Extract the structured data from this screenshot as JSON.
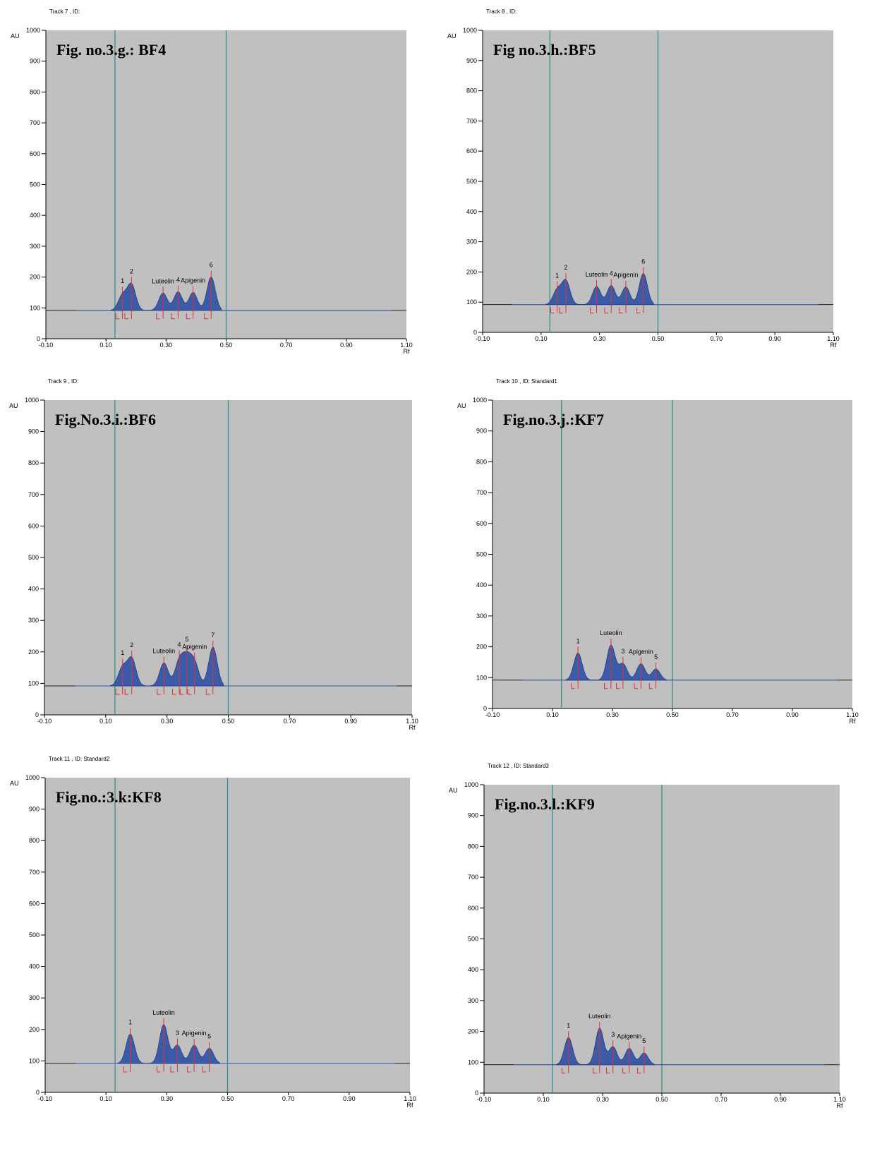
{
  "chart_data": [
    {
      "type": "line",
      "track_label": "Track  7 , ID:",
      "title": "Fig. no.3.g.: BF4",
      "ylabel": "AU",
      "xlabel": "Rf",
      "xlim": [
        -0.1,
        1.1
      ],
      "ylim": [
        0,
        1000
      ],
      "x_ticks": [
        "-0.10",
        "0.10",
        "0.30",
        "0.50",
        "0.70",
        "0.90",
        "1.10"
      ],
      "y_ticks": [
        "0",
        "100",
        "200",
        "300",
        "400",
        "500",
        "600",
        "700",
        "800",
        "900",
        "1000"
      ],
      "baseline": 92,
      "scan_range": [
        0.0,
        1.05
      ],
      "front_lines": [
        0.13,
        0.5
      ],
      "peaks": [
        {
          "rf": 0.155,
          "height": 140,
          "label": "1"
        },
        {
          "rf": 0.185,
          "height": 175,
          "label": "2"
        },
        {
          "rf": 0.29,
          "height": 148,
          "label": "Luteolin"
        },
        {
          "rf": 0.34,
          "height": 152,
          "label": "4"
        },
        {
          "rf": 0.39,
          "height": 150,
          "label": "Apigenin"
        },
        {
          "rf": 0.45,
          "height": 200,
          "label": "6"
        }
      ]
    },
    {
      "type": "line",
      "track_label": "Track  8 , ID:",
      "title": "Fig no.3.h.:BF5",
      "ylabel": "AU",
      "xlabel": "Rf",
      "xlim": [
        -0.1,
        1.1
      ],
      "ylim": [
        0,
        1000
      ],
      "x_ticks": [
        "-0.10",
        "0.10",
        "0.30",
        "0.50",
        "0.70",
        "0.90",
        "1.10"
      ],
      "y_ticks": [
        "0",
        "100",
        "200",
        "300",
        "400",
        "500",
        "600",
        "700",
        "800",
        "900",
        "1000"
      ],
      "baseline": 92,
      "scan_range": [
        0.0,
        1.05
      ],
      "front_lines": [
        0.13,
        0.5
      ],
      "peaks": [
        {
          "rf": 0.155,
          "height": 140,
          "label": "1"
        },
        {
          "rf": 0.185,
          "height": 170,
          "label": "2"
        },
        {
          "rf": 0.29,
          "height": 152,
          "label": "Luteolin"
        },
        {
          "rf": 0.34,
          "height": 155,
          "label": "4"
        },
        {
          "rf": 0.39,
          "height": 150,
          "label": "Apigenin"
        },
        {
          "rf": 0.45,
          "height": 195,
          "label": "6"
        }
      ]
    },
    {
      "type": "line",
      "track_label": "Track  9 , ID:",
      "title": "Fig.No.3.i.:BF6",
      "ylabel": "AU",
      "xlabel": "Rf",
      "xlim": [
        -0.1,
        1.1
      ],
      "ylim": [
        0,
        1000
      ],
      "x_ticks": [
        "-0.10",
        "0.10",
        "0.30",
        "0.50",
        "0.70",
        "0.90",
        "1.10"
      ],
      "y_ticks": [
        "0",
        "100",
        "200",
        "300",
        "400",
        "500",
        "600",
        "700",
        "800",
        "900",
        "1000"
      ],
      "baseline": 92,
      "scan_range": [
        0.0,
        1.05
      ],
      "front_lines": [
        0.13,
        0.5
      ],
      "peaks": [
        {
          "rf": 0.155,
          "height": 150,
          "label": "1"
        },
        {
          "rf": 0.185,
          "height": 178,
          "label": "2"
        },
        {
          "rf": 0.29,
          "height": 165,
          "label": "Luteolin"
        },
        {
          "rf": 0.34,
          "height": 168,
          "label": "4"
        },
        {
          "rf": 0.365,
          "height": 172,
          "label": "5"
        },
        {
          "rf": 0.39,
          "height": 162,
          "label": "Apigenin"
        },
        {
          "rf": 0.45,
          "height": 215,
          "label": "7"
        }
      ]
    },
    {
      "type": "line",
      "track_label": "Track  10 , ID: Standard1",
      "title": "Fig.no.3.j.:KF7",
      "ylabel": "AU",
      "xlabel": "Rf",
      "xlim": [
        -0.1,
        1.1
      ],
      "ylim": [
        0,
        1000
      ],
      "x_ticks": [
        "-0.10",
        "0.10",
        "0.30",
        "0.50",
        "0.70",
        "0.90",
        "1.10"
      ],
      "y_ticks": [
        "0",
        "100",
        "200",
        "300",
        "400",
        "500",
        "600",
        "700",
        "800",
        "900",
        "1000"
      ],
      "baseline": 92,
      "scan_range": [
        0.0,
        1.05
      ],
      "front_lines": [
        0.13,
        0.5
      ],
      "peaks": [
        {
          "rf": 0.185,
          "height": 180,
          "label": "1"
        },
        {
          "rf": 0.295,
          "height": 205,
          "label": "Luteolin"
        },
        {
          "rf": 0.335,
          "height": 145,
          "label": "3"
        },
        {
          "rf": 0.395,
          "height": 145,
          "label": "Apigenin"
        },
        {
          "rf": 0.445,
          "height": 128,
          "label": "5"
        }
      ]
    },
    {
      "type": "line",
      "track_label": "Track  11 , ID: Standard2",
      "title": "Fig.no.:3.k:KF8",
      "ylabel": "AU",
      "xlabel": "Rf",
      "xlim": [
        -0.1,
        1.1
      ],
      "ylim": [
        0,
        1000
      ],
      "x_ticks": [
        "-0.10",
        "0.10",
        "0.30",
        "0.50",
        "0.70",
        "0.90",
        "1.10"
      ],
      "y_ticks": [
        "0",
        "100",
        "200",
        "300",
        "400",
        "500",
        "600",
        "700",
        "800",
        "900",
        "1000"
      ],
      "baseline": 92,
      "scan_range": [
        0.0,
        1.05
      ],
      "front_lines": [
        0.13,
        0.5
      ],
      "peaks": [
        {
          "rf": 0.18,
          "height": 185,
          "label": "1"
        },
        {
          "rf": 0.29,
          "height": 215,
          "label": "Luteolin"
        },
        {
          "rf": 0.335,
          "height": 150,
          "label": "3"
        },
        {
          "rf": 0.39,
          "height": 150,
          "label": "Apigenin"
        },
        {
          "rf": 0.44,
          "height": 140,
          "label": "5"
        }
      ]
    },
    {
      "type": "line",
      "track_label": "Track  12 , ID: Standard3",
      "title": "Fig.no.3.l.:KF9",
      "ylabel": "AU",
      "xlabel": "Rf",
      "xlim": [
        -0.1,
        1.1
      ],
      "ylim": [
        0,
        1000
      ],
      "x_ticks": [
        "-0.10",
        "0.10",
        "0.30",
        "0.50",
        "0.70",
        "0.90",
        "1.10"
      ],
      "y_ticks": [
        "0",
        "100",
        "200",
        "300",
        "400",
        "500",
        "600",
        "700",
        "800",
        "900",
        "1000"
      ],
      "baseline": 92,
      "scan_range": [
        0.0,
        1.05
      ],
      "front_lines": [
        0.13,
        0.5
      ],
      "peaks": [
        {
          "rf": 0.185,
          "height": 180,
          "label": "1"
        },
        {
          "rf": 0.29,
          "height": 210,
          "label": "Luteolin"
        },
        {
          "rf": 0.335,
          "height": 150,
          "label": "3"
        },
        {
          "rf": 0.39,
          "height": 145,
          "label": "Apigenin"
        },
        {
          "rf": 0.44,
          "height": 130,
          "label": "5"
        }
      ]
    }
  ],
  "colors": {
    "plot_background": "#c0c0c0",
    "peak_fill": "#3b5ba8",
    "peak_outline": "#2a3f80",
    "baseline_scan": "#4a6ab8",
    "front_line": "#2e8b87",
    "integration_marker": "#e03030",
    "axis": "#000000"
  }
}
